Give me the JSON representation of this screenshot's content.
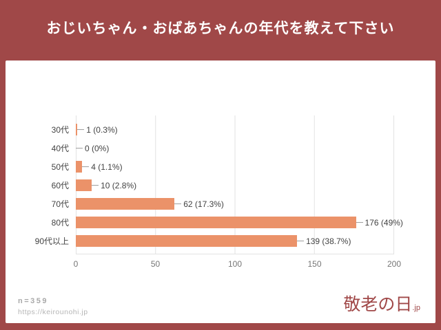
{
  "page": {
    "title": "おじいちゃん・おばあちゃんの年代を教えて下さい",
    "bg_color": "#a04848"
  },
  "chart_data": {
    "type": "bar",
    "orientation": "horizontal",
    "title": "おじいちゃん・おばあちゃんの年代を教えて下さい",
    "categories": [
      "30代",
      "40代",
      "50代",
      "60代",
      "70代",
      "80代",
      "90代以上"
    ],
    "values": [
      1,
      0,
      4,
      10,
      62,
      176,
      139
    ],
    "value_labels": [
      "1 (0.3%)",
      "0 (0%)",
      "4 (1.1%)",
      "10 (2.8%)",
      "62 (17.3%)",
      "176 (49%)",
      "139 (38.7%)"
    ],
    "xlabel": "",
    "ylabel": "",
    "xlim": [
      0,
      200
    ],
    "x_ticks": [
      0,
      50,
      100,
      150,
      200
    ],
    "grid": true,
    "legend": "none",
    "bar_color": "#eb9269"
  },
  "footer": {
    "sample_size": "n=359",
    "url": "https://keirounohi.jp",
    "logo_text": "敬老の日",
    "logo_suffix": ".jp"
  }
}
